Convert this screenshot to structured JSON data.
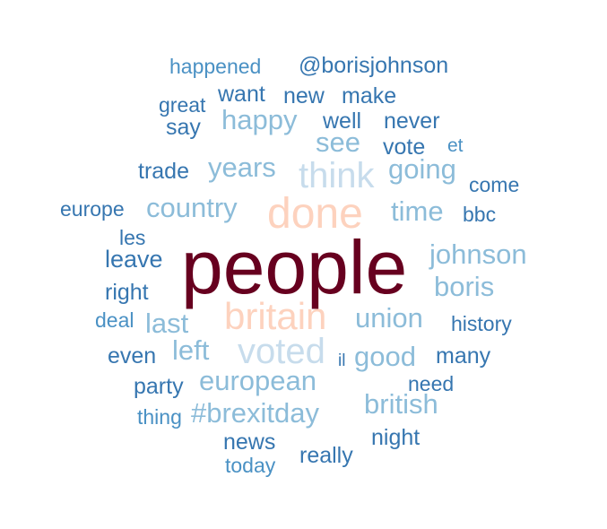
{
  "colors": {
    "darkest": "#67001f",
    "peach": "#fdd2be",
    "pale_blue": "#c7dcec",
    "light_blue": "#8cbcd9",
    "mid_blue": "#4a91c4",
    "dark_blue": "#3676b0"
  },
  "words": [
    {
      "text": "people",
      "color": "#67001f"
    },
    {
      "text": "done",
      "color": "#fdd2be"
    },
    {
      "text": "britain",
      "color": "#fdd2be"
    },
    {
      "text": "think",
      "color": "#c7dcec"
    },
    {
      "text": "voted",
      "color": "#c7dcec"
    },
    {
      "text": "country",
      "color": "#8cbcd9"
    },
    {
      "text": "years",
      "color": "#8cbcd9"
    },
    {
      "text": "happy",
      "color": "#8cbcd9"
    },
    {
      "text": "european",
      "color": "#8cbcd9"
    },
    {
      "text": "#brexitday",
      "color": "#8cbcd9"
    },
    {
      "text": "union",
      "color": "#8cbcd9"
    },
    {
      "text": "time",
      "color": "#8cbcd9"
    },
    {
      "text": "going",
      "color": "#8cbcd9"
    },
    {
      "text": "johnson",
      "color": "#8cbcd9"
    },
    {
      "text": "good",
      "color": "#8cbcd9"
    },
    {
      "text": "last",
      "color": "#8cbcd9"
    },
    {
      "text": "see",
      "color": "#8cbcd9"
    },
    {
      "text": "boris",
      "color": "#8cbcd9"
    },
    {
      "text": "left",
      "color": "#8cbcd9"
    },
    {
      "text": "british",
      "color": "#8cbcd9"
    },
    {
      "text": "@borisjohnson",
      "color": "#3676b0"
    },
    {
      "text": "happened",
      "color": "#4a91c4"
    },
    {
      "text": "want",
      "color": "#3676b0"
    },
    {
      "text": "new",
      "color": "#3676b0"
    },
    {
      "text": "make",
      "color": "#3676b0"
    },
    {
      "text": "great",
      "color": "#3676b0"
    },
    {
      "text": "say",
      "color": "#3676b0"
    },
    {
      "text": "well",
      "color": "#3676b0"
    },
    {
      "text": "never",
      "color": "#3676b0"
    },
    {
      "text": "vote",
      "color": "#3676b0"
    },
    {
      "text": "et",
      "color": "#4a91c4"
    },
    {
      "text": "trade",
      "color": "#3676b0"
    },
    {
      "text": "come",
      "color": "#3676b0"
    },
    {
      "text": "europe",
      "color": "#3676b0"
    },
    {
      "text": "bbc",
      "color": "#3676b0"
    },
    {
      "text": "les",
      "color": "#3676b0"
    },
    {
      "text": "leave",
      "color": "#3676b0"
    },
    {
      "text": "right",
      "color": "#3676b0"
    },
    {
      "text": "deal",
      "color": "#4a91c4"
    },
    {
      "text": "history",
      "color": "#3676b0"
    },
    {
      "text": "even",
      "color": "#3676b0"
    },
    {
      "text": "il",
      "color": "#3676b0"
    },
    {
      "text": "many",
      "color": "#3676b0"
    },
    {
      "text": "party",
      "color": "#3676b0"
    },
    {
      "text": "need",
      "color": "#3676b0"
    },
    {
      "text": "thing",
      "color": "#4a91c4"
    },
    {
      "text": "news",
      "color": "#3676b0"
    },
    {
      "text": "night",
      "color": "#3676b0"
    },
    {
      "text": "really",
      "color": "#3676b0"
    },
    {
      "text": "today",
      "color": "#4a91c4"
    }
  ]
}
